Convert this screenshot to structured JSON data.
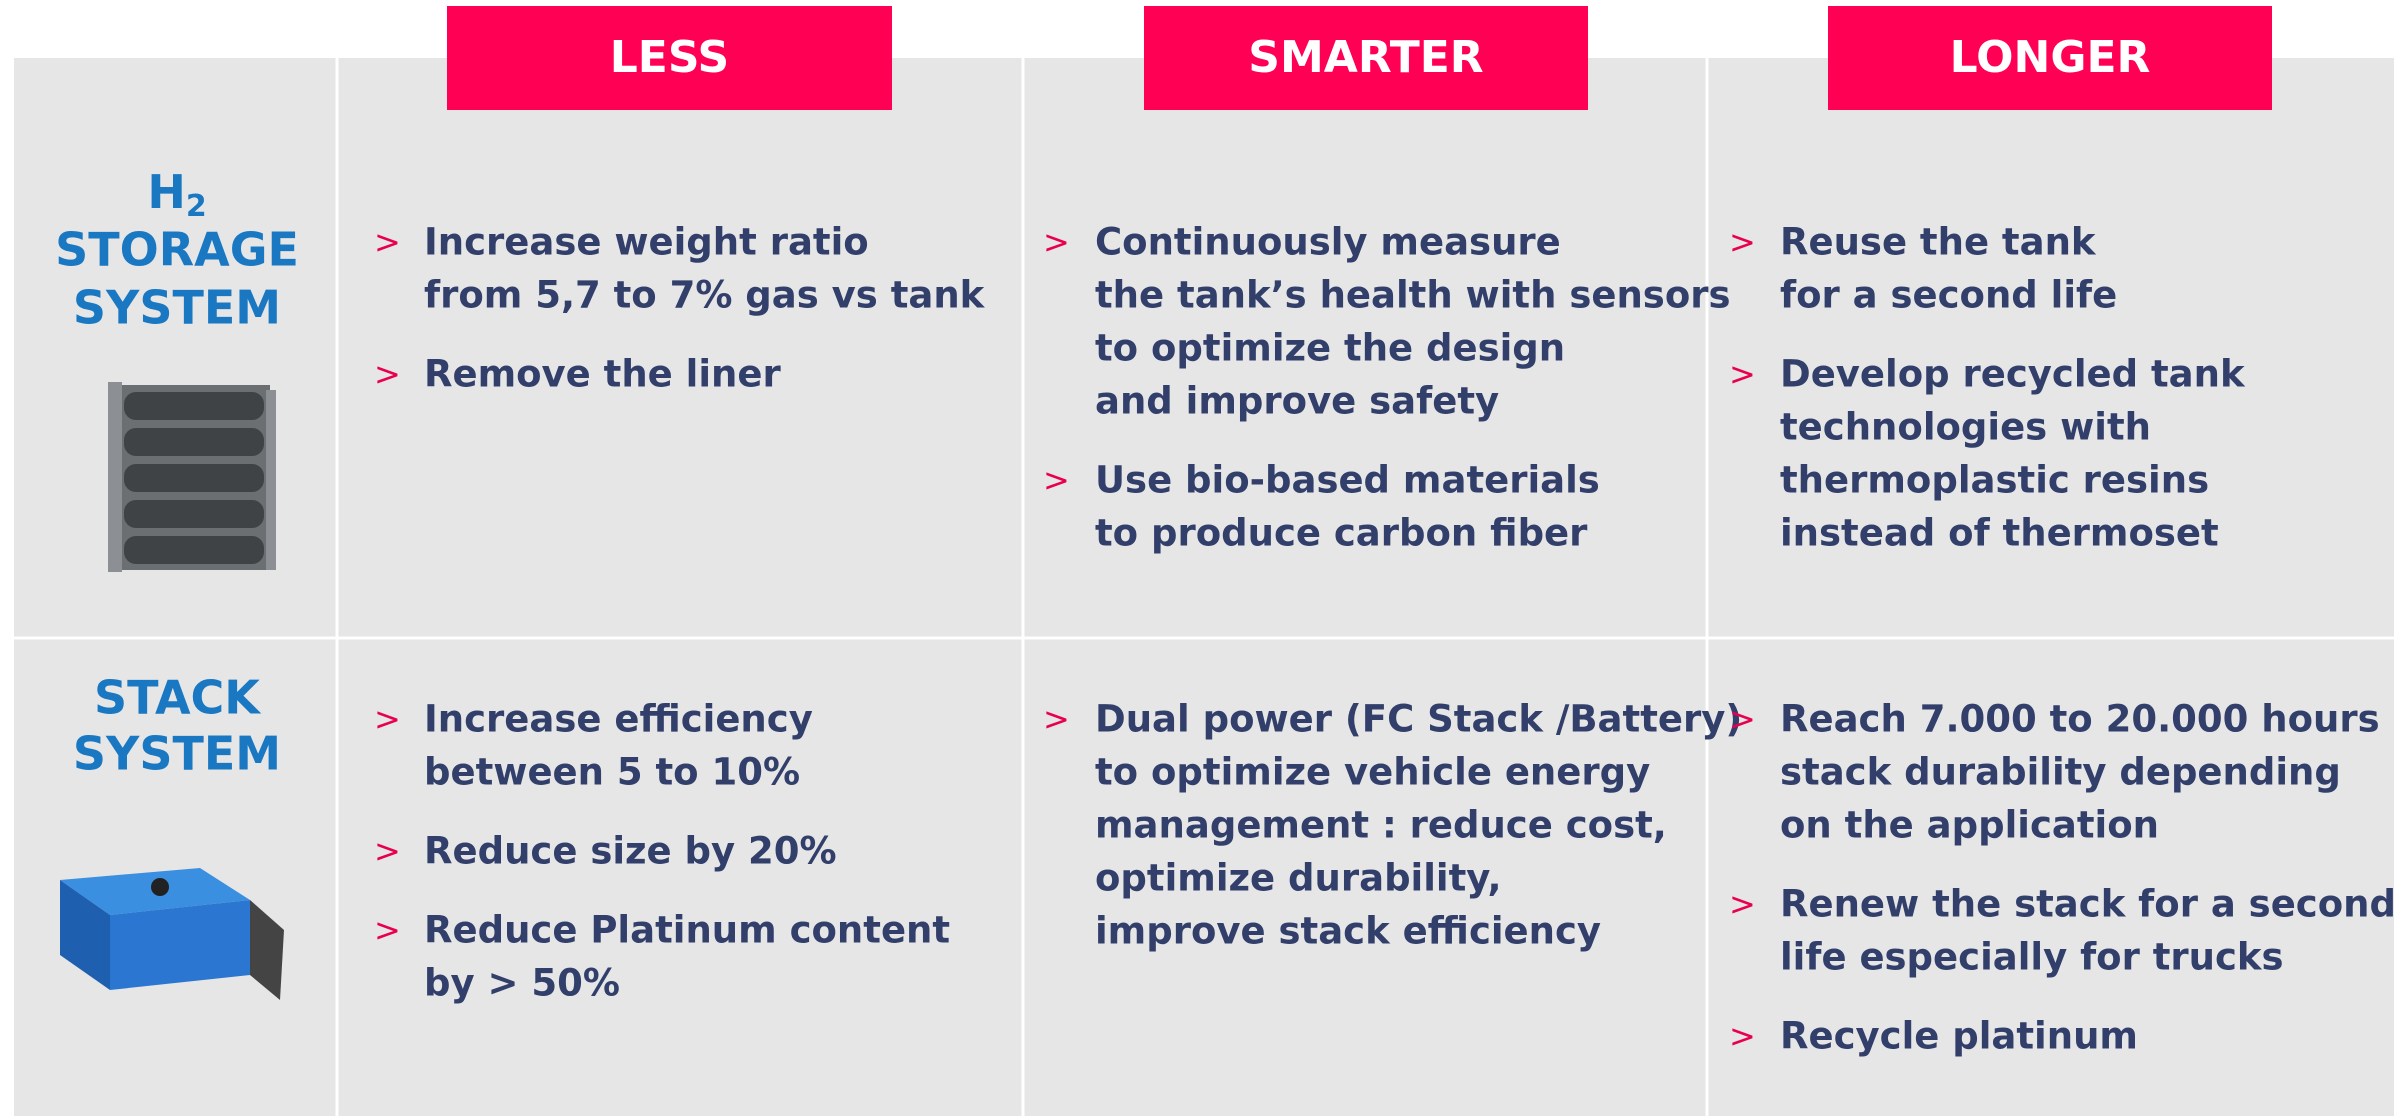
{
  "header": {
    "columns": [
      "LESS",
      "SMARTER",
      "LONGER"
    ]
  },
  "rows": [
    {
      "label": {
        "symbol": "H",
        "subscript": "2",
        "lines": [
          "STORAGE",
          "SYSTEM"
        ]
      },
      "cells": [
        [
          [
            "Increase weight ratio",
            "from 5,7 to 7% gas vs tank"
          ],
          [
            "Remove the liner"
          ]
        ],
        [
          [
            "Continuously measure",
            "the tank’s health with sensors",
            "to optimize the design",
            "and improve safety"
          ],
          [
            "Use bio-based materials",
            "to produce carbon fiber"
          ]
        ],
        [
          [
            "Reuse the tank",
            "for a second life"
          ],
          [
            "Develop recycled tank",
            "technologies with",
            "thermoplastic resins",
            "instead of thermoset"
          ]
        ]
      ]
    },
    {
      "label": {
        "lines": [
          "STACK",
          "SYSTEM"
        ]
      },
      "cells": [
        [
          [
            "Increase efficiency",
            "between 5 to 10%"
          ],
          [
            "Reduce size by 20%"
          ],
          [
            "Reduce Platinum content",
            "by > 50%"
          ]
        ],
        [
          [
            "Dual power (FC Stack /Battery)",
            "to optimize vehicle energy",
            "management : reduce cost,",
            "optimize durability,",
            "improve stack efficiency"
          ]
        ],
        [
          [
            "Reach 7.000 to 20.000 hours",
            "stack durability depending",
            "on the application"
          ],
          [
            "Renew the stack for a second",
            "life especially for trucks"
          ],
          [
            "Recycle platinum"
          ]
        ]
      ]
    }
  ]
}
